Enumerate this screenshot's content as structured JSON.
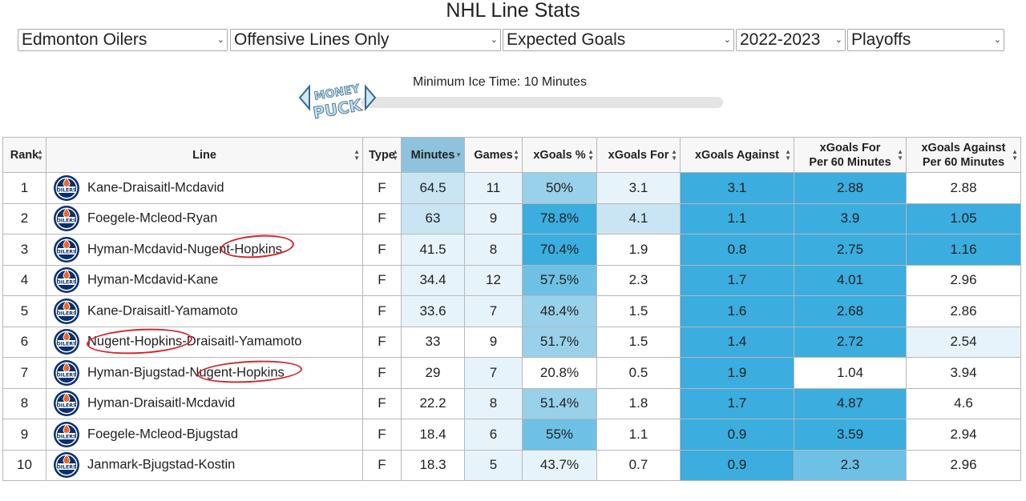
{
  "page_title": "NHL Line Stats",
  "filters": {
    "team": "Edmonton Oilers",
    "line_type": "Offensive Lines Only",
    "metric": "Expected Goals",
    "season": "2022-2023",
    "season_type": "Playoffs"
  },
  "slider": {
    "label": "Minimum Ice Time: 10 Minutes",
    "value_minutes": 10
  },
  "logo_text": "MONEY PUCK",
  "team_logo_text": "OILERS",
  "colors": {
    "heat_1": "#ffffff",
    "heat_2": "#e7f3fa",
    "heat_3": "#c9e5f3",
    "heat_4": "#99d0ea",
    "heat_5": "#6ec0e4",
    "heat_6": "#3badde",
    "annotation": "#d3262a",
    "oilers_blue": "#0a2f6b",
    "oilers_orange": "#f26522"
  },
  "table": {
    "headers": {
      "rank": "Rank",
      "line": "Line",
      "type": "Type",
      "minutes": "Minutes",
      "games": "Games",
      "xgoals_pct": "xGoals %",
      "xgoals_for": "xGoals For",
      "xgoals_against": "xGoals Against",
      "xgf60_1": "xGoals For",
      "xgf60_2": "Per 60 Minutes",
      "xga60_1": "xGoals Against",
      "xga60_2": "Per 60 Minutes"
    },
    "rows": [
      {
        "rank": "1",
        "line": "Kane-Draisaitl-Mcdavid",
        "type": "F",
        "minutes": "64.5",
        "games": "11",
        "xgoals_pct": "50%",
        "xgoals_for": "3.1",
        "xgoals_against": "3.1",
        "xgf60": "2.88",
        "xga60": "2.88"
      },
      {
        "rank": "2",
        "line": "Foegele-Mcleod-Ryan",
        "type": "F",
        "minutes": "63",
        "games": "9",
        "xgoals_pct": "78.8%",
        "xgoals_for": "4.1",
        "xgoals_against": "1.1",
        "xgf60": "3.9",
        "xga60": "1.05"
      },
      {
        "rank": "3",
        "line": "Hyman-Mcdavid-Nugent-Hopkins",
        "type": "F",
        "minutes": "41.5",
        "games": "8",
        "xgoals_pct": "70.4%",
        "xgoals_for": "1.9",
        "xgoals_against": "0.8",
        "xgf60": "2.75",
        "xga60": "1.16"
      },
      {
        "rank": "4",
        "line": "Hyman-Mcdavid-Kane",
        "type": "F",
        "minutes": "34.4",
        "games": "12",
        "xgoals_pct": "57.5%",
        "xgoals_for": "2.3",
        "xgoals_against": "1.7",
        "xgf60": "4.01",
        "xga60": "2.96"
      },
      {
        "rank": "5",
        "line": "Kane-Draisaitl-Yamamoto",
        "type": "F",
        "minutes": "33.6",
        "games": "7",
        "xgoals_pct": "48.4%",
        "xgoals_for": "1.5",
        "xgoals_against": "1.6",
        "xgf60": "2.68",
        "xga60": "2.86"
      },
      {
        "rank": "6",
        "line": "Nugent-Hopkins-Draisaitl-Yamamoto",
        "type": "F",
        "minutes": "33",
        "games": "9",
        "xgoals_pct": "51.7%",
        "xgoals_for": "1.5",
        "xgoals_against": "1.4",
        "xgf60": "2.72",
        "xga60": "2.54"
      },
      {
        "rank": "7",
        "line": "Hyman-Bjugstad-Nugent-Hopkins",
        "type": "F",
        "minutes": "29",
        "games": "7",
        "xgoals_pct": "20.8%",
        "xgoals_for": "0.5",
        "xgoals_against": "1.9",
        "xgf60": "1.04",
        "xga60": "3.94"
      },
      {
        "rank": "8",
        "line": "Hyman-Draisaitl-Mcdavid",
        "type": "F",
        "minutes": "22.2",
        "games": "8",
        "xgoals_pct": "51.4%",
        "xgoals_for": "1.8",
        "xgoals_against": "1.7",
        "xgf60": "4.87",
        "xga60": "4.6"
      },
      {
        "rank": "9",
        "line": "Foegele-Mcleod-Bjugstad",
        "type": "F",
        "minutes": "18.4",
        "games": "6",
        "xgoals_pct": "55%",
        "xgoals_for": "1.1",
        "xgoals_against": "0.9",
        "xgf60": "3.59",
        "xga60": "2.94"
      },
      {
        "rank": "10",
        "line": "Janmark-Bjugstad-Kostin",
        "type": "F",
        "minutes": "18.3",
        "games": "5",
        "xgoals_pct": "43.7%",
        "xgoals_for": "0.7",
        "xgoals_against": "0.9",
        "xgf60": "2.3",
        "xga60": "2.96"
      }
    ],
    "heat": [
      {
        "minutes": 3,
        "games": 2,
        "xgoals_pct": 4,
        "xgoals_for": 2,
        "xgoals_against": 6,
        "xgf60": 6,
        "xga60": 1
      },
      {
        "minutes": 3,
        "games": 2,
        "xgoals_pct": 6,
        "xgoals_for": 3,
        "xgoals_against": 6,
        "xgf60": 6,
        "xga60": 6
      },
      {
        "minutes": 2,
        "games": 2,
        "xgoals_pct": 6,
        "xgoals_for": 1,
        "xgoals_against": 6,
        "xgf60": 6,
        "xga60": 6
      },
      {
        "minutes": 2,
        "games": 2,
        "xgoals_pct": 5,
        "xgoals_for": 1,
        "xgoals_against": 6,
        "xgf60": 6,
        "xga60": 1
      },
      {
        "minutes": 2,
        "games": 2,
        "xgoals_pct": 4,
        "xgoals_for": 1,
        "xgoals_against": 6,
        "xgf60": 6,
        "xga60": 1
      },
      {
        "minutes": 1,
        "games": 1,
        "xgoals_pct": 4,
        "xgoals_for": 1,
        "xgoals_against": 6,
        "xgf60": 6,
        "xga60": 2
      },
      {
        "minutes": 1,
        "games": 2,
        "xgoals_pct": 1,
        "xgoals_for": 1,
        "xgoals_against": 6,
        "xgf60": 1,
        "xga60": 1
      },
      {
        "minutes": 1,
        "games": 2,
        "xgoals_pct": 4,
        "xgoals_for": 1,
        "xgoals_against": 6,
        "xgf60": 6,
        "xga60": 1
      },
      {
        "minutes": 1,
        "games": 2,
        "xgoals_pct": 5,
        "xgoals_for": 1,
        "xgoals_against": 6,
        "xgf60": 6,
        "xga60": 1
      },
      {
        "minutes": 1,
        "games": 2,
        "xgoals_pct": 2,
        "xgoals_for": 1,
        "xgoals_against": 6,
        "xgf60": 5,
        "xga60": 1
      }
    ],
    "sorted_column": "minutes"
  }
}
